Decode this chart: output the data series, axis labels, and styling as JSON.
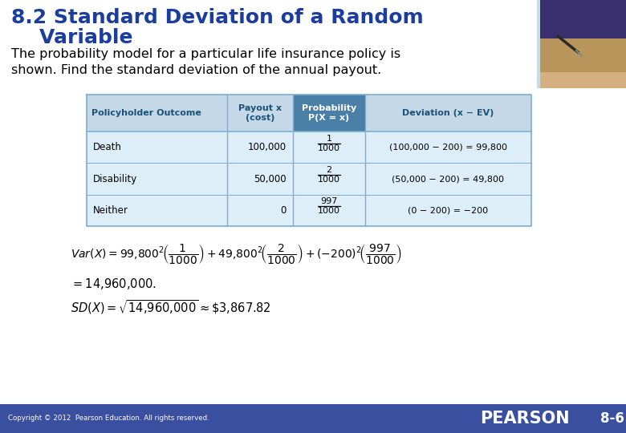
{
  "title_line1": "8.2 Standard Deviation of a Random",
  "title_line2": "    Variable",
  "title_color": "#1a3d9e",
  "subtitle_line1": "The probability model for a particular life insurance policy is",
  "subtitle_line2": "shown. Find the standard deviation of the annual payout.",
  "subtitle_color": "#000000",
  "bg_color": "#ffffff",
  "footer_bg": "#3a4fa0",
  "footer_text": "Copyright © 2012  Pearson Education. All rights reserved.",
  "footer_pearson": "PEARSON",
  "footer_page": "8-6",
  "table_header_bg": "#c5d8e8",
  "table_row_bg": "#ddeef8",
  "table_border": "#7aaed4",
  "table_header_color": "#1a5276",
  "table_text_color": "#000000",
  "col_headers": [
    "Policyholder Outcome",
    "Payout x\n(cost)",
    "Probability\nP(X = x)",
    "Deviation (x − EV)"
  ],
  "row_outcomes": [
    "Death",
    "Disability",
    "Neither"
  ],
  "row_payouts": [
    "100,000",
    "50,000",
    "0"
  ],
  "row_probs_num": [
    "1",
    "2",
    "997"
  ],
  "row_probs_den": [
    "1000",
    "1000",
    "1000"
  ],
  "row_deviations": [
    "(100,000 − 200) = 99,800",
    "(50,000 − 200) = 49,800",
    "(0 − 200) = −200"
  ],
  "top_right_purple": "#3a3070",
  "top_right_tan": "#c8a97a",
  "top_right_blue": "#4a6fa0"
}
